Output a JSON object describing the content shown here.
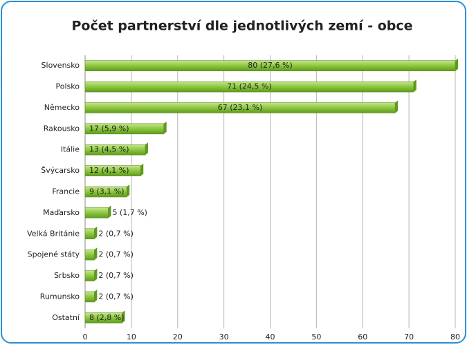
{
  "chart_data": {
    "type": "barh",
    "title": "Počet partnerství dle jednotlivých zemí - obce",
    "categories": [
      "Slovensko",
      "Polsko",
      "Německo",
      "Rakousko",
      "Itálie",
      "Švýcarsko",
      "Francie",
      "Maďarsko",
      "Velká Británie",
      "Spojené státy",
      "Srbsko",
      "Rumunsko",
      "Ostatní"
    ],
    "values": [
      80,
      71,
      67,
      17,
      13,
      12,
      9,
      5,
      2,
      2,
      2,
      2,
      8
    ],
    "value_labels": [
      "80 (27,6 %)",
      "71 (24,5 %)",
      "67 (23,1 %)",
      "17 (5,9 %)",
      "13 (4,5 %)",
      "12 (4,1 %)",
      "9 (3,1 %)",
      "5 (1,7 %)",
      "2 (0,7 %)",
      "2 (0,7 %)",
      "2 (0,7 %)",
      "2 (0,7 %)",
      "8 (2,8 %)"
    ],
    "color": "#8cc63e",
    "xlim": [
      0,
      80
    ],
    "xticks": [
      0,
      10,
      20,
      30,
      40,
      50,
      60,
      70,
      80
    ],
    "grid": true
  }
}
